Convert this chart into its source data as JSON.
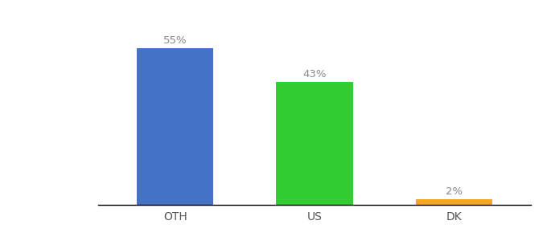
{
  "categories": [
    "OTH",
    "US",
    "DK"
  ],
  "values": [
    55,
    43,
    2
  ],
  "bar_colors": [
    "#4472c4",
    "#33cc33",
    "#f5a623"
  ],
  "labels": [
    "55%",
    "43%",
    "2%"
  ],
  "background_color": "#ffffff",
  "ylim": [
    0,
    65
  ],
  "bar_width": 0.55,
  "label_fontsize": 9.5,
  "tick_fontsize": 10,
  "label_color": "#888888"
}
